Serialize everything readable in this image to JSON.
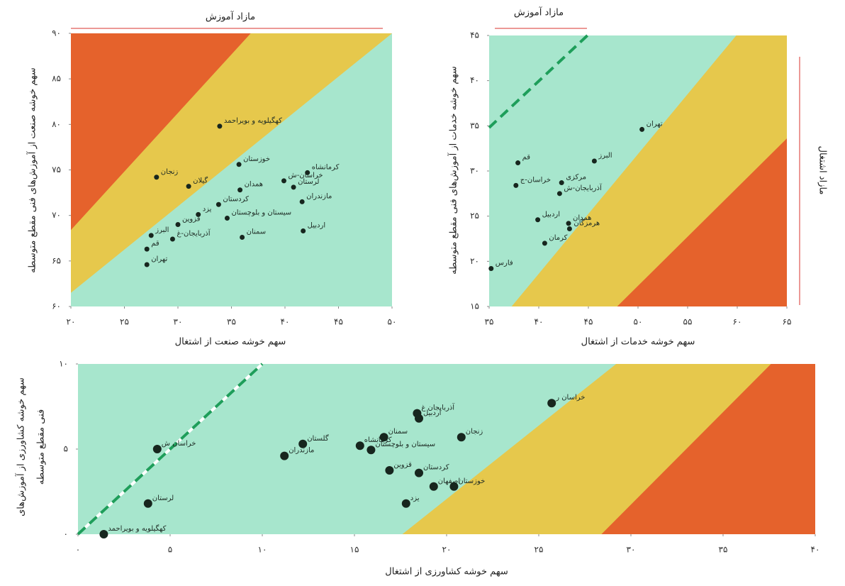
{
  "chart_data": [
    {
      "type": "scatter",
      "title": "مازاد آموزش",
      "x_label": "سهم خوشه صنعت از اشتغال",
      "y_label": "سهم خوشه صنعت از آموزش‌های فنی مقطع متوسطه",
      "point_labels": [
        "تهران",
        "قم",
        "البرز",
        "آذربایجان-غ",
        "سمنان",
        "اردبیل",
        "قزوین",
        "یزد",
        "سیستان و بلوچستان",
        "کردستان",
        "مازندران",
        "لرستان",
        "خراسان-ش",
        "همدان",
        "کرمانشاه",
        "خوزستان",
        "کهگیلویه و بویراحمد",
        "گیلان",
        "زنجان"
      ],
      "x": [
        27.1,
        27.1,
        27.5,
        29.5,
        36,
        41.7,
        30,
        31.9,
        34.6,
        33.8,
        41.6,
        40.8,
        39.9,
        35.8,
        42.1,
        35.7,
        33.9,
        31,
        28
      ],
      "values": [
        64.6,
        66.3,
        67.8,
        67.4,
        67.6,
        68.3,
        69,
        70.1,
        69.7,
        71.2,
        71.5,
        73.1,
        73.8,
        72.8,
        74.7,
        75.6,
        79.8,
        73.2,
        74.2
      ],
      "color": "#17261e",
      "xlim": [
        20,
        50
      ],
      "ylim": [
        60,
        90
      ],
      "xticks": [
        {
          "value": 20,
          "label": "۲۰"
        },
        {
          "value": 25,
          "label": "۲۵"
        },
        {
          "value": 30,
          "label": "۳۰"
        },
        {
          "value": 35,
          "label": "۳۵"
        },
        {
          "value": 40,
          "label": "۴۰"
        },
        {
          "value": 45,
          "label": "۴۵"
        },
        {
          "value": 50,
          "label": "۵۰"
        }
      ],
      "yticks": [
        {
          "value": 60,
          "label": "۶۰"
        },
        {
          "value": 65,
          "label": "۶۵"
        },
        {
          "value": 70,
          "label": "۷۰"
        },
        {
          "value": 75,
          "label": "۷۵"
        },
        {
          "value": 80,
          "label": "۸۰"
        },
        {
          "value": 85,
          "label": "۸۵"
        },
        {
          "value": 90,
          "label": "۹۰"
        }
      ]
    },
    {
      "type": "scatter",
      "title": "مازاد آموزش",
      "annotation": "مازاد اشتغال",
      "x_label": "سهم خوشه خدمات از اشتغال",
      "y_label": "سهم خوشه خدمات از آموزش‌های فنی مقطع متوسطه",
      "point_labels": [
        "تهران",
        "البرز",
        "قم",
        "مرکزی",
        "خراسان-ج",
        "آذربایجان-ش",
        "همدان",
        "اردبیل",
        "هرمزگان",
        "کرمان",
        "فارس"
      ],
      "x": [
        50.4,
        45.6,
        37.9,
        42.3,
        37.7,
        42.1,
        43,
        39.9,
        43.1,
        40.6,
        35.2
      ],
      "values": [
        34.6,
        31.1,
        30.9,
        28.7,
        28.4,
        27.5,
        24.2,
        24.6,
        23.6,
        22,
        19.2
      ],
      "color": "#17261e",
      "xlim": [
        35,
        65
      ],
      "ylim": [
        15,
        45
      ],
      "xticks": [
        {
          "value": 35,
          "label": "۳۵"
        },
        {
          "value": 40,
          "label": "۴۰"
        },
        {
          "value": 45,
          "label": "۴۵"
        },
        {
          "value": 50,
          "label": "۵۰"
        },
        {
          "value": 55,
          "label": "۵۵"
        },
        {
          "value": 60,
          "label": "۶۰"
        },
        {
          "value": 65,
          "label": "۶۵"
        }
      ],
      "yticks": [
        {
          "value": 15,
          "label": "۱۵"
        },
        {
          "value": 20,
          "label": "۲۰"
        },
        {
          "value": 25,
          "label": "۲۵"
        },
        {
          "value": 30,
          "label": "۳۰"
        },
        {
          "value": 35,
          "label": "۳۵"
        },
        {
          "value": 40,
          "label": "۴۰"
        },
        {
          "value": 45,
          "label": "۴۵"
        }
      ]
    },
    {
      "type": "scatter",
      "x_label": "سهم خوشه کشاورزی از اشتغال",
      "y_label": [
        "سهم خوشه کشاورزی از آموزش‌های",
        "فنی مقطع متوسطه"
      ],
      "point_labels": [
        "کهگیلویه و بویراحمد",
        "لرستان",
        "خراسان ش",
        "مازندران",
        "گلستان",
        "کرمانشاه",
        "سیستان و بلوچستان",
        "سمنان",
        "آذربایجان غ",
        "اردبیل",
        "زنجان",
        "قزوین",
        "کردستان",
        "اصفهان",
        "یزد",
        "خوزستان",
        "خراسان ر"
      ],
      "x": [
        1.4,
        3.8,
        4.3,
        11.2,
        12.2,
        15.3,
        15.9,
        16.6,
        18.4,
        18.5,
        20.8,
        16.9,
        18.5,
        19.3,
        17.8,
        20.4,
        25.7
      ],
      "values": [
        0,
        1.8,
        5,
        4.6,
        5.3,
        5.2,
        4.95,
        5.7,
        7.1,
        6.8,
        5.7,
        3.75,
        3.6,
        2.8,
        1.8,
        2.8,
        7.7
      ],
      "color": "#17261e",
      "xlim": [
        0,
        40
      ],
      "ylim": [
        0,
        10
      ],
      "xticks": [
        {
          "value": 0,
          "label": "۰"
        },
        {
          "value": 5,
          "label": "۵"
        },
        {
          "value": 10,
          "label": "۱۰"
        },
        {
          "value": 15,
          "label": "۱۵"
        },
        {
          "value": 20,
          "label": "۲۰"
        },
        {
          "value": 25,
          "label": "۲۵"
        },
        {
          "value": 30,
          "label": "۳۰"
        },
        {
          "value": 35,
          "label": "۳۵"
        },
        {
          "value": 40,
          "label": "۴۰"
        }
      ],
      "yticks": [
        {
          "value": 0,
          "label": "۰"
        },
        {
          "value": 5,
          "label": "۵"
        },
        {
          "value": 10,
          "label": "۱۰"
        }
      ]
    }
  ]
}
